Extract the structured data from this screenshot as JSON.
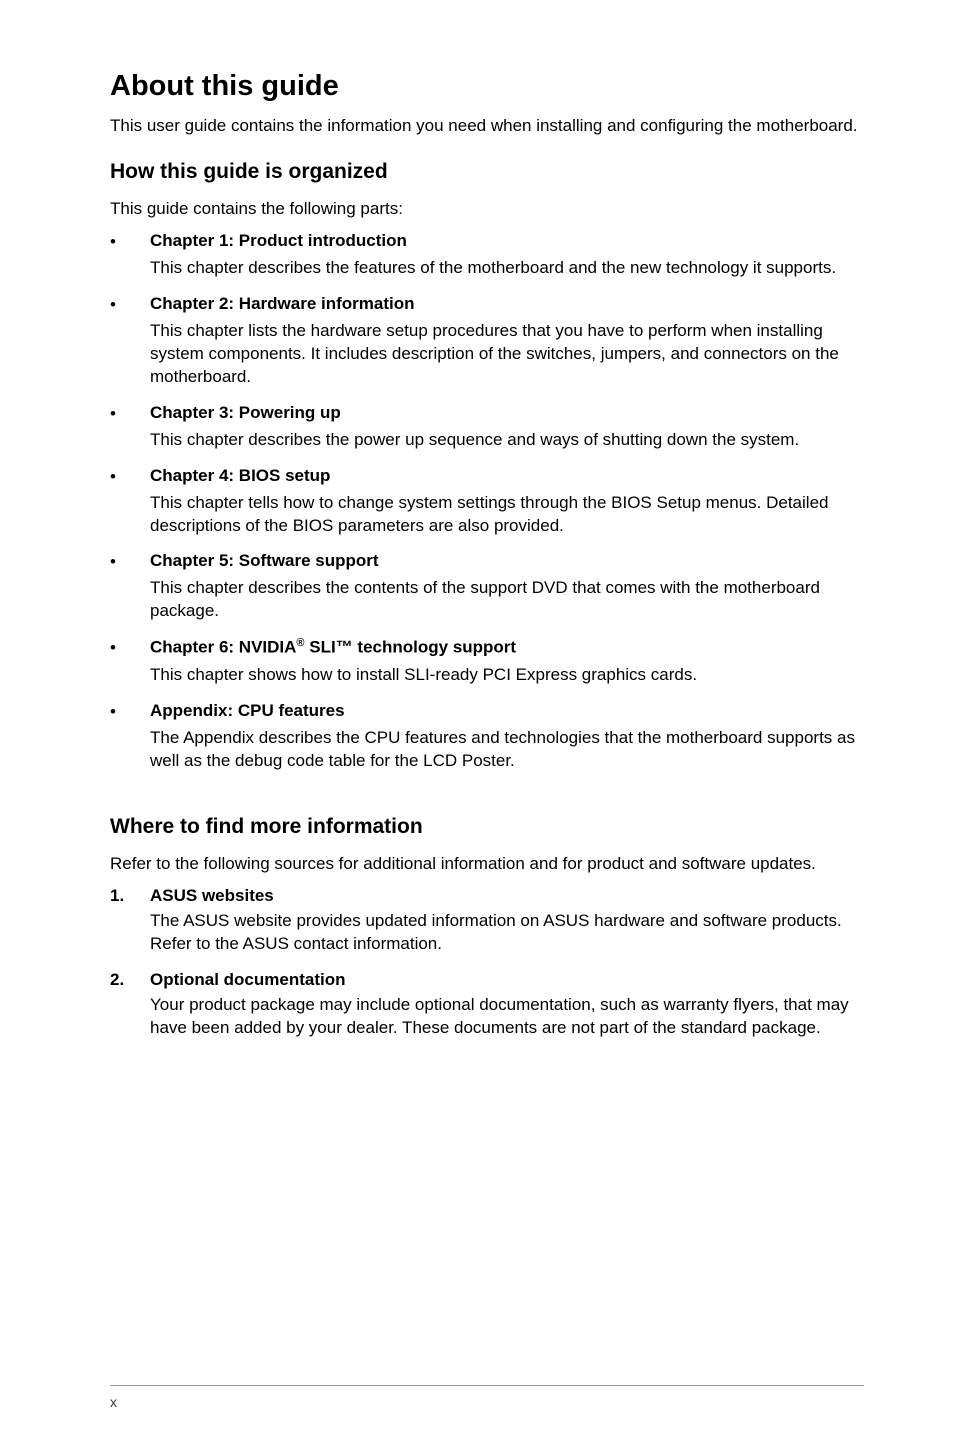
{
  "title": "About this guide",
  "intro": "This user guide contains the information you need when installing and configuring the motherboard.",
  "how_organized": {
    "heading": "How this guide is organized",
    "intro": "This guide contains the following parts:",
    "chapters": [
      {
        "title": "Chapter 1: Product introduction",
        "desc": "This chapter describes the features of the motherboard and the new technology it supports."
      },
      {
        "title": "Chapter 2: Hardware information",
        "desc": "This chapter lists the hardware setup procedures that you have to perform when installing system components. It includes description of the switches, jumpers, and connectors on the motherboard."
      },
      {
        "title": "Chapter 3: Powering up",
        "desc": "This chapter describes the power up sequence and ways of shutting down the system."
      },
      {
        "title": "Chapter 4: BIOS setup",
        "desc": "This chapter tells how to change system settings through the BIOS Setup menus. Detailed descriptions of the BIOS parameters are also provided."
      },
      {
        "title": "Chapter 5: Software support",
        "desc": "This chapter describes the contents of the support DVD that comes with the motherboard package."
      },
      {
        "title_prefix": "Chapter 6: NVIDIA",
        "title_sup": "®",
        "title_suffix": " SLI™ technology support",
        "desc": "This chapter shows how to install SLI-ready PCI Express graphics cards."
      },
      {
        "title": "Appendix: CPU features",
        "desc": "The Appendix describes the CPU features and technologies that the motherboard supports as well as the debug code table for the LCD Poster."
      }
    ]
  },
  "more_info": {
    "heading": "Where to find more information",
    "intro": "Refer to the following sources for additional information and for product and software updates.",
    "items": [
      {
        "num": "1.",
        "title": "ASUS websites",
        "desc": "The ASUS website provides updated information on ASUS hardware and software products. Refer to the ASUS contact information."
      },
      {
        "num": "2.",
        "title": "Optional documentation",
        "desc": "Your product package may include optional documentation, such as warranty flyers, that may have been added by your dealer. These documents are not part of the standard package."
      }
    ]
  },
  "page_number": "x",
  "bullet_char": "•"
}
